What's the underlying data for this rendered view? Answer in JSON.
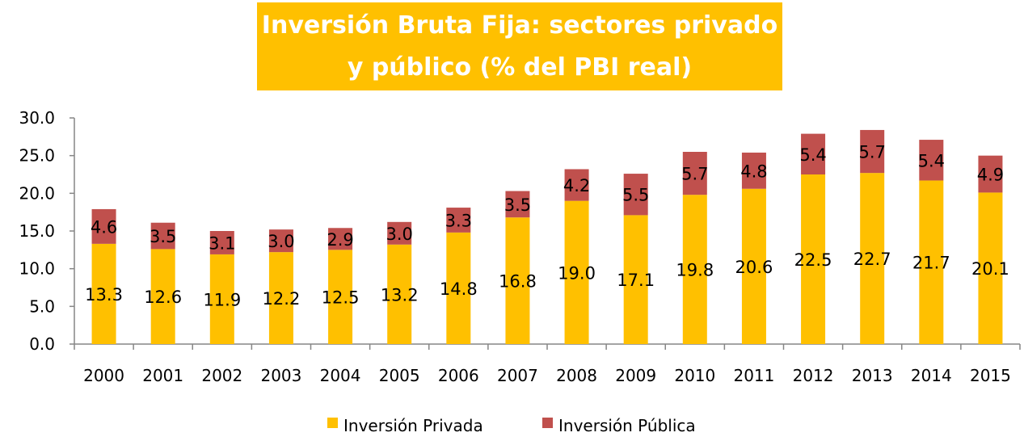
{
  "chart_data": {
    "type": "bar",
    "stacked": true,
    "title_lines": [
      "Inversión Bruta Fija: sectores privado",
      "y público (% del PBI real)"
    ],
    "categories": [
      "2000",
      "2001",
      "2002",
      "2003",
      "2004",
      "2005",
      "2006",
      "2007",
      "2008",
      "2009",
      "2010",
      "2011",
      "2012",
      "2013",
      "2014",
      "2015"
    ],
    "series": [
      {
        "name": "Inversión Privada",
        "color": "#FFC000",
        "values": [
          13.3,
          12.6,
          11.9,
          12.2,
          12.5,
          13.2,
          14.8,
          16.8,
          19.0,
          17.1,
          19.8,
          20.6,
          22.5,
          22.7,
          21.7,
          20.1
        ]
      },
      {
        "name": "Inversión Pública",
        "color": "#C0504D",
        "values": [
          4.6,
          3.5,
          3.1,
          3.0,
          2.9,
          3.0,
          3.3,
          3.5,
          4.2,
          5.5,
          5.7,
          4.8,
          5.4,
          5.7,
          5.4,
          4.9
        ]
      }
    ],
    "ylim": [
      0,
      30
    ],
    "yticks": [
      "0.0",
      "5.0",
      "10.0",
      "15.0",
      "20.0",
      "25.0",
      "30.0"
    ],
    "grid": false,
    "legend_position": "bottom",
    "title_background": "#FFC000",
    "title_color": "#FFFFFF"
  }
}
